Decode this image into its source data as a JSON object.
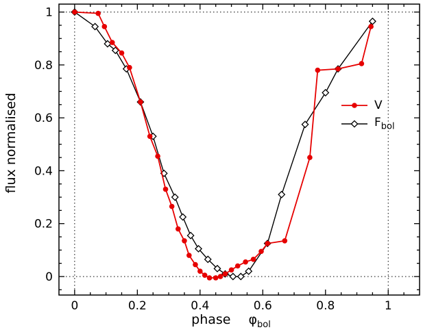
{
  "figure": {
    "background": "#ffffff",
    "frame_color": "#000000",
    "text_color": "#000000"
  },
  "chart_data": {
    "type": "line",
    "title": "",
    "xlabel": {
      "text": "phase",
      "symbol": "φ",
      "subscript": "bol"
    },
    "ylabel": "flux normalised",
    "xlim": [
      -0.05,
      1.1
    ],
    "ylim": [
      -0.07,
      1.03
    ],
    "xticks": [
      0,
      0.2,
      0.4,
      0.6,
      0.8,
      1
    ],
    "xtick_labels": [
      "0",
      "0.2",
      "0.4",
      "0.6",
      "0.8",
      "1"
    ],
    "yticks": [
      0,
      0.2,
      0.4,
      0.6,
      0.8,
      1
    ],
    "ytick_labels": [
      "0",
      "0.2",
      "0.4",
      "0.6",
      "0.8",
      "1"
    ],
    "minor_tick_step": 0.05,
    "grid": false,
    "reference_lines": {
      "style": "dotted",
      "x": [
        0,
        1
      ],
      "y": [
        0,
        1
      ]
    },
    "legend_position": "right-center",
    "series": [
      {
        "name": "V",
        "color": "#e60000",
        "marker": "filled-circle",
        "line_width": 1.8,
        "points": [
          [
            0.0,
            1.0
          ],
          [
            0.075,
            0.995
          ],
          [
            0.095,
            0.945
          ],
          [
            0.12,
            0.885
          ],
          [
            0.15,
            0.845
          ],
          [
            0.175,
            0.79
          ],
          [
            0.21,
            0.66
          ],
          [
            0.24,
            0.53
          ],
          [
            0.265,
            0.455
          ],
          [
            0.29,
            0.33
          ],
          [
            0.31,
            0.265
          ],
          [
            0.33,
            0.18
          ],
          [
            0.35,
            0.135
          ],
          [
            0.365,
            0.08
          ],
          [
            0.385,
            0.045
          ],
          [
            0.4,
            0.02
          ],
          [
            0.415,
            0.005
          ],
          [
            0.43,
            -0.005
          ],
          [
            0.45,
            -0.005
          ],
          [
            0.465,
            0.0
          ],
          [
            0.48,
            0.01
          ],
          [
            0.5,
            0.025
          ],
          [
            0.52,
            0.04
          ],
          [
            0.545,
            0.055
          ],
          [
            0.57,
            0.065
          ],
          [
            0.595,
            0.095
          ],
          [
            0.615,
            0.125
          ],
          [
            0.67,
            0.135
          ],
          [
            0.75,
            0.45
          ],
          [
            0.775,
            0.78
          ],
          [
            0.84,
            0.785
          ],
          [
            0.915,
            0.805
          ],
          [
            0.945,
            0.945
          ]
        ]
      },
      {
        "name": "F_bol",
        "label_main": "F",
        "label_sub": "bol",
        "color": "#000000",
        "marker": "open-diamond",
        "line_width": 1.4,
        "points": [
          [
            0.0,
            1.0
          ],
          [
            0.065,
            0.945
          ],
          [
            0.105,
            0.88
          ],
          [
            0.13,
            0.855
          ],
          [
            0.165,
            0.785
          ],
          [
            0.21,
            0.66
          ],
          [
            0.25,
            0.53
          ],
          [
            0.285,
            0.39
          ],
          [
            0.32,
            0.3
          ],
          [
            0.345,
            0.225
          ],
          [
            0.37,
            0.155
          ],
          [
            0.395,
            0.105
          ],
          [
            0.425,
            0.065
          ],
          [
            0.455,
            0.03
          ],
          [
            0.48,
            0.01
          ],
          [
            0.505,
            0.0
          ],
          [
            0.53,
            0.0
          ],
          [
            0.555,
            0.02
          ],
          [
            0.615,
            0.125
          ],
          [
            0.66,
            0.31
          ],
          [
            0.735,
            0.575
          ],
          [
            0.8,
            0.695
          ],
          [
            0.84,
            0.785
          ],
          [
            0.95,
            0.965
          ]
        ]
      }
    ]
  }
}
